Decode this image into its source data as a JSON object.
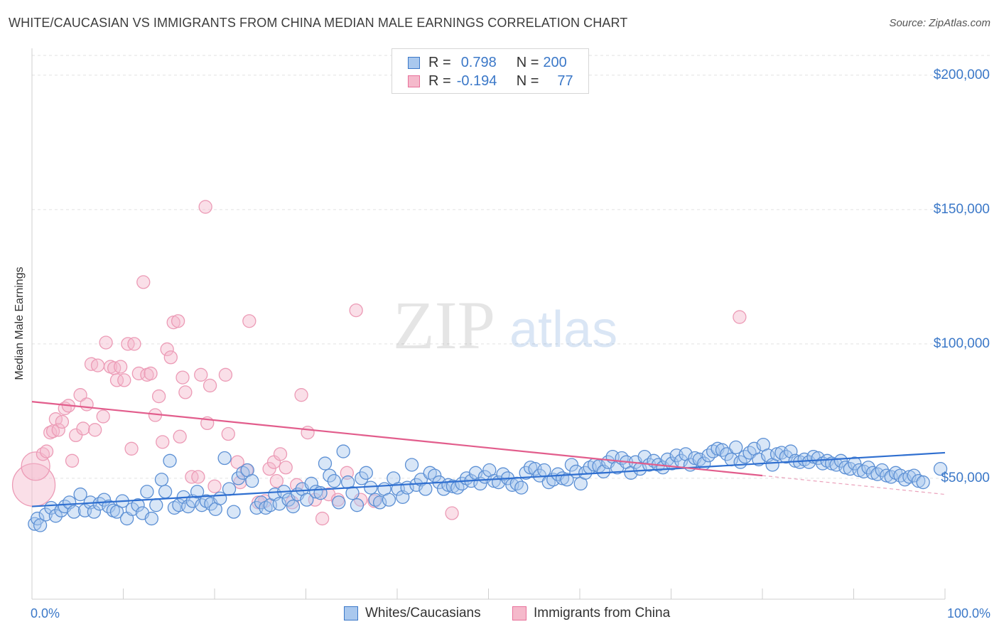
{
  "title": "WHITE/CAUCASIAN VS IMMIGRANTS FROM CHINA MEDIAN MALE EARNINGS CORRELATION CHART",
  "source": "Source: ZipAtlas.com",
  "watermark": {
    "zip": "ZIP",
    "atlas": "atlas"
  },
  "colors": {
    "blue": "#3b78c8",
    "blue_fill": "#a9c8ee",
    "pink": "#e8709a",
    "pink_fill": "#f5b9cb",
    "grid": "#dddddd"
  },
  "legend": {
    "rows": [
      {
        "r_label": "R =",
        "r_value": "0.798",
        "n_label": "N =",
        "n_value": "200"
      },
      {
        "r_label": "R =",
        "r_value": "-0.194",
        "n_label": "N =",
        "n_value": "77"
      }
    ]
  },
  "bottom_legend": {
    "series1": "Whites/Caucasians",
    "series2": "Immigrants from China"
  },
  "chart_data": {
    "type": "scatter",
    "title": "WHITE/CAUCASIAN VS IMMIGRANTS FROM CHINA MEDIAN MALE EARNINGS CORRELATION CHART",
    "xlabel": "",
    "ylabel": "Median Male Earnings",
    "xlim": [
      0,
      100
    ],
    "ylim": [
      5000,
      210000
    ],
    "x_tick_labels": {
      "min": "0.0%",
      "max": "100.0%"
    },
    "y_ticks": [
      50000,
      100000,
      150000,
      200000
    ],
    "y_tick_labels": [
      "$50,000",
      "$100,000",
      "$150,000",
      "$200,000"
    ],
    "series": [
      {
        "name": "Whites/Caucasians",
        "color": "#3b78c8",
        "trend": {
          "x": [
            0,
            100
          ],
          "y": [
            39500,
            59500
          ]
        },
        "points": [
          [
            0.3,
            33000
          ],
          [
            0.6,
            35000
          ],
          [
            0.9,
            32500
          ],
          [
            1.5,
            36500
          ],
          [
            2.1,
            39000
          ],
          [
            2.6,
            36000
          ],
          [
            3.2,
            38000
          ],
          [
            3.6,
            39500
          ],
          [
            4.1,
            41000
          ],
          [
            4.6,
            37500
          ],
          [
            5.3,
            44000
          ],
          [
            5.8,
            38000
          ],
          [
            6.4,
            41000
          ],
          [
            6.8,
            37500
          ],
          [
            7.4,
            40500
          ],
          [
            7.9,
            42000
          ],
          [
            8.4,
            39500
          ],
          [
            8.9,
            38000
          ],
          [
            9.3,
            37500
          ],
          [
            9.9,
            41500
          ],
          [
            10.4,
            35000
          ],
          [
            11.0,
            38500
          ],
          [
            11.6,
            40000
          ],
          [
            12.1,
            37000
          ],
          [
            12.6,
            45000
          ],
          [
            13.1,
            35000
          ],
          [
            13.6,
            40000
          ],
          [
            14.2,
            49500
          ],
          [
            14.6,
            45000
          ],
          [
            15.1,
            56500
          ],
          [
            15.6,
            39000
          ],
          [
            16.1,
            40000
          ],
          [
            16.6,
            43000
          ],
          [
            17.1,
            39500
          ],
          [
            17.6,
            41500
          ],
          [
            18.1,
            45000
          ],
          [
            18.6,
            40000
          ],
          [
            19.1,
            41500
          ],
          [
            19.6,
            40500
          ],
          [
            20.1,
            38500
          ],
          [
            20.6,
            42500
          ],
          [
            21.1,
            57500
          ],
          [
            21.6,
            46000
          ],
          [
            22.1,
            37500
          ],
          [
            22.6,
            50000
          ],
          [
            23.1,
            52000
          ],
          [
            23.6,
            53000
          ],
          [
            24.1,
            49000
          ],
          [
            24.6,
            39000
          ],
          [
            25.1,
            41000
          ],
          [
            25.6,
            39000
          ],
          [
            26.1,
            40000
          ],
          [
            26.6,
            44000
          ],
          [
            27.1,
            40500
          ],
          [
            27.6,
            45000
          ],
          [
            28.1,
            42000
          ],
          [
            28.6,
            39500
          ],
          [
            29.1,
            44000
          ],
          [
            29.6,
            46000
          ],
          [
            30.1,
            42000
          ],
          [
            30.6,
            48000
          ],
          [
            31.1,
            45000
          ],
          [
            31.6,
            44500
          ],
          [
            32.1,
            55500
          ],
          [
            32.6,
            51000
          ],
          [
            33.1,
            49000
          ],
          [
            33.6,
            41000
          ],
          [
            34.1,
            60000
          ],
          [
            34.6,
            48500
          ],
          [
            35.1,
            44500
          ],
          [
            35.6,
            40000
          ],
          [
            36.1,
            50000
          ],
          [
            36.6,
            52000
          ],
          [
            37.1,
            46500
          ],
          [
            37.6,
            42000
          ],
          [
            38.1,
            41000
          ],
          [
            38.6,
            46000
          ],
          [
            39.1,
            42000
          ],
          [
            39.6,
            50000
          ],
          [
            40.1,
            46000
          ],
          [
            40.6,
            43000
          ],
          [
            41.1,
            46500
          ],
          [
            41.6,
            55000
          ],
          [
            42.1,
            47500
          ],
          [
            42.6,
            49500
          ],
          [
            43.1,
            46000
          ],
          [
            43.6,
            52000
          ],
          [
            44.1,
            51000
          ],
          [
            44.6,
            48500
          ],
          [
            45.1,
            46000
          ],
          [
            45.6,
            47500
          ],
          [
            46.1,
            47000
          ],
          [
            46.6,
            46500
          ],
          [
            47.1,
            48000
          ],
          [
            47.6,
            50000
          ],
          [
            48.1,
            49000
          ],
          [
            48.6,
            52000
          ],
          [
            49.1,
            48000
          ],
          [
            49.6,
            50500
          ],
          [
            50.1,
            53000
          ],
          [
            50.6,
            49000
          ],
          [
            51.1,
            48500
          ],
          [
            51.6,
            51500
          ],
          [
            52.1,
            50000
          ],
          [
            52.6,
            47500
          ],
          [
            53.1,
            48000
          ],
          [
            53.6,
            46500
          ],
          [
            54.1,
            52000
          ],
          [
            54.6,
            54000
          ],
          [
            55.1,
            53500
          ],
          [
            55.6,
            51000
          ],
          [
            56.1,
            53000
          ],
          [
            56.6,
            48500
          ],
          [
            57.1,
            49500
          ],
          [
            57.6,
            51500
          ],
          [
            58.1,
            50000
          ],
          [
            58.6,
            49500
          ],
          [
            59.1,
            55000
          ],
          [
            59.6,
            52500
          ],
          [
            60.1,
            48000
          ],
          [
            60.6,
            52000
          ],
          [
            61.1,
            54000
          ],
          [
            61.6,
            55000
          ],
          [
            62.1,
            54500
          ],
          [
            62.6,
            52500
          ],
          [
            63.1,
            56000
          ],
          [
            63.6,
            58000
          ],
          [
            64.1,
            54000
          ],
          [
            64.6,
            57500
          ],
          [
            65.1,
            56000
          ],
          [
            65.6,
            52000
          ],
          [
            66.1,
            56000
          ],
          [
            66.6,
            53500
          ],
          [
            67.1,
            58000
          ],
          [
            67.6,
            55000
          ],
          [
            68.1,
            56500
          ],
          [
            68.6,
            55000
          ],
          [
            69.1,
            54000
          ],
          [
            69.6,
            57000
          ],
          [
            70.1,
            55500
          ],
          [
            70.6,
            58500
          ],
          [
            71.1,
            56500
          ],
          [
            71.6,
            59000
          ],
          [
            72.1,
            55000
          ],
          [
            72.6,
            57500
          ],
          [
            73.1,
            57000
          ],
          [
            73.6,
            55500
          ],
          [
            74.1,
            58500
          ],
          [
            74.6,
            60000
          ],
          [
            75.1,
            61000
          ],
          [
            75.6,
            60500
          ],
          [
            76.1,
            59000
          ],
          [
            76.6,
            57000
          ],
          [
            77.1,
            61500
          ],
          [
            77.6,
            56000
          ],
          [
            78.1,
            58000
          ],
          [
            78.6,
            59500
          ],
          [
            79.1,
            61000
          ],
          [
            79.6,
            57000
          ],
          [
            80.1,
            62500
          ],
          [
            80.6,
            58500
          ],
          [
            81.1,
            55000
          ],
          [
            81.6,
            59000
          ],
          [
            82.1,
            59500
          ],
          [
            82.6,
            58000
          ],
          [
            83.1,
            60000
          ],
          [
            83.6,
            56500
          ],
          [
            84.1,
            56000
          ],
          [
            84.6,
            57000
          ],
          [
            85.1,
            56000
          ],
          [
            85.6,
            58000
          ],
          [
            86.1,
            57500
          ],
          [
            86.6,
            55500
          ],
          [
            87.1,
            56500
          ],
          [
            87.6,
            55500
          ],
          [
            88.1,
            55000
          ],
          [
            88.6,
            56500
          ],
          [
            89.1,
            54000
          ],
          [
            89.6,
            53500
          ],
          [
            90.1,
            55500
          ],
          [
            90.6,
            53000
          ],
          [
            91.1,
            52500
          ],
          [
            91.6,
            54000
          ],
          [
            92.1,
            52000
          ],
          [
            92.6,
            51500
          ],
          [
            93.1,
            53000
          ],
          [
            93.6,
            51000
          ],
          [
            94.1,
            50500
          ],
          [
            94.6,
            52000
          ],
          [
            95.1,
            51000
          ],
          [
            95.6,
            49500
          ],
          [
            96.1,
            50500
          ],
          [
            96.6,
            51000
          ],
          [
            97.1,
            49000
          ],
          [
            97.6,
            48500
          ],
          [
            99.5,
            53500
          ]
        ]
      },
      {
        "name": "Immigrants from China",
        "color": "#e8709a",
        "trend": {
          "x": [
            0,
            80
          ],
          "y": [
            78500,
            51000
          ],
          "dashed_to": [
            100,
            44000
          ]
        },
        "points": [
          [
            0.2,
            47500,
            "L"
          ],
          [
            0.4,
            54500,
            "M"
          ],
          [
            1.2,
            59000
          ],
          [
            1.6,
            60000
          ],
          [
            2.0,
            67000
          ],
          [
            2.3,
            67500
          ],
          [
            2.6,
            72000
          ],
          [
            2.9,
            68000
          ],
          [
            3.3,
            71000
          ],
          [
            3.6,
            76000
          ],
          [
            4.0,
            77000
          ],
          [
            4.4,
            56500
          ],
          [
            4.8,
            66000
          ],
          [
            5.3,
            81000
          ],
          [
            5.6,
            68500
          ],
          [
            6.0,
            77500
          ],
          [
            6.5,
            92500
          ],
          [
            6.9,
            68000
          ],
          [
            7.2,
            92000
          ],
          [
            7.8,
            73000
          ],
          [
            8.1,
            100500
          ],
          [
            8.6,
            91500
          ],
          [
            9.0,
            91000
          ],
          [
            9.3,
            86500
          ],
          [
            9.7,
            91500
          ],
          [
            10.1,
            86500
          ],
          [
            10.5,
            100000
          ],
          [
            10.9,
            61000
          ],
          [
            11.2,
            100000
          ],
          [
            11.7,
            89000
          ],
          [
            12.2,
            123000
          ],
          [
            12.6,
            88500
          ],
          [
            13.0,
            89000
          ],
          [
            13.5,
            73500
          ],
          [
            13.9,
            80500
          ],
          [
            14.3,
            63500
          ],
          [
            14.8,
            98000
          ],
          [
            15.2,
            95000
          ],
          [
            15.5,
            108000
          ],
          [
            16.0,
            108500
          ],
          [
            16.2,
            65500
          ],
          [
            16.8,
            82000
          ],
          [
            16.5,
            87500
          ],
          [
            17.5,
            50500
          ],
          [
            18.2,
            50500
          ],
          [
            18.5,
            88500
          ],
          [
            19.2,
            70500
          ],
          [
            19.5,
            84500
          ],
          [
            19.0,
            151000
          ],
          [
            20.0,
            47000
          ],
          [
            21.2,
            88500
          ],
          [
            21.5,
            66500
          ],
          [
            22.8,
            48500
          ],
          [
            22.5,
            56000
          ],
          [
            23.5,
            53000
          ],
          [
            23.8,
            108500
          ],
          [
            24.8,
            41000
          ],
          [
            25.5,
            41500
          ],
          [
            26.0,
            53500
          ],
          [
            26.5,
            56000
          ],
          [
            26.8,
            49000
          ],
          [
            27.2,
            59000
          ],
          [
            27.8,
            54000
          ],
          [
            28.5,
            41000
          ],
          [
            29.0,
            47500
          ],
          [
            29.5,
            81000
          ],
          [
            30.2,
            67000
          ],
          [
            31.0,
            42000
          ],
          [
            31.8,
            35000
          ],
          [
            32.5,
            44000
          ],
          [
            33.5,
            42000
          ],
          [
            34.5,
            52000
          ],
          [
            35.5,
            112500
          ],
          [
            36.0,
            42000
          ],
          [
            37.5,
            41500
          ],
          [
            46.0,
            37000
          ],
          [
            77.5,
            110000
          ]
        ]
      }
    ]
  }
}
